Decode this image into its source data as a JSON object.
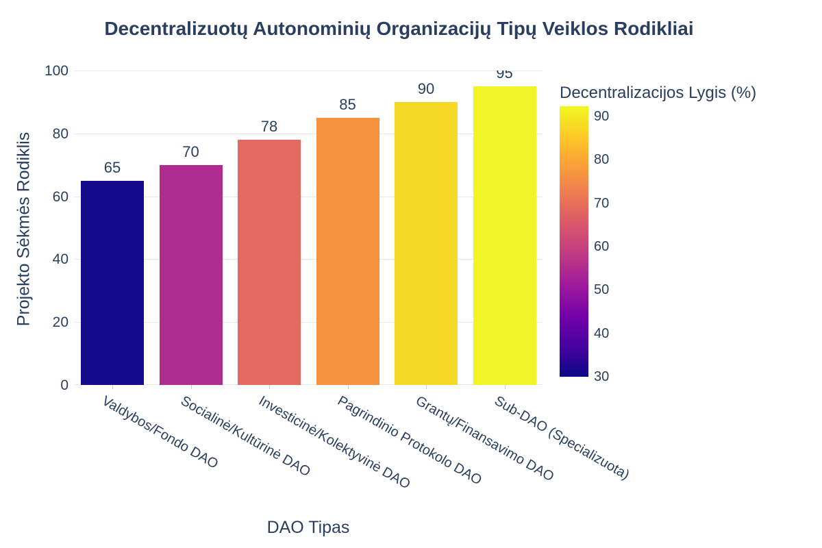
{
  "chart_data": {
    "type": "bar",
    "title": "Decentralizuotų Autonominių Organizacijų Tipų Veiklos Rodikliai",
    "xlabel": "DAO Tipas",
    "ylabel": "Projekto Sėkmės Rodiklis",
    "categories": [
      "Valdybos/Fondo DAO",
      "Socialinė/Kultūrinė DAO",
      "Investicinė/Kolektyvinė DAO",
      "Pagrindinio Protokolo DAO",
      "Grantų/Finansavimo DAO",
      "Sub-DAO (Specializuota)"
    ],
    "values": [
      65,
      70,
      78,
      85,
      90,
      95
    ],
    "bar_colors": [
      "#150b8c",
      "#b02d90",
      "#e26a60",
      "#f6923e",
      "#f6d926",
      "#f1f525"
    ],
    "ylim": [
      0,
      100
    ],
    "yticks": [
      0,
      20,
      40,
      60,
      80,
      100
    ],
    "grid": true,
    "legend_position": "right-colorbar",
    "colorbar": {
      "title": "Decentralizacijos Lygis (%)",
      "ticks": [
        90,
        80,
        70,
        60,
        50,
        40,
        30
      ],
      "range": [
        30,
        92
      ],
      "colorscale_name": "plasma",
      "gradient_stops": [
        "#0d0887",
        "#46039f",
        "#7201a8",
        "#9c179e",
        "#bd3786",
        "#d8576b",
        "#ed7953",
        "#fb9f3a",
        "#fdca26",
        "#f0f921"
      ]
    },
    "colors": {
      "text": "#2a3f5f",
      "grid": "#e5e7eb",
      "background": "#ffffff"
    }
  }
}
